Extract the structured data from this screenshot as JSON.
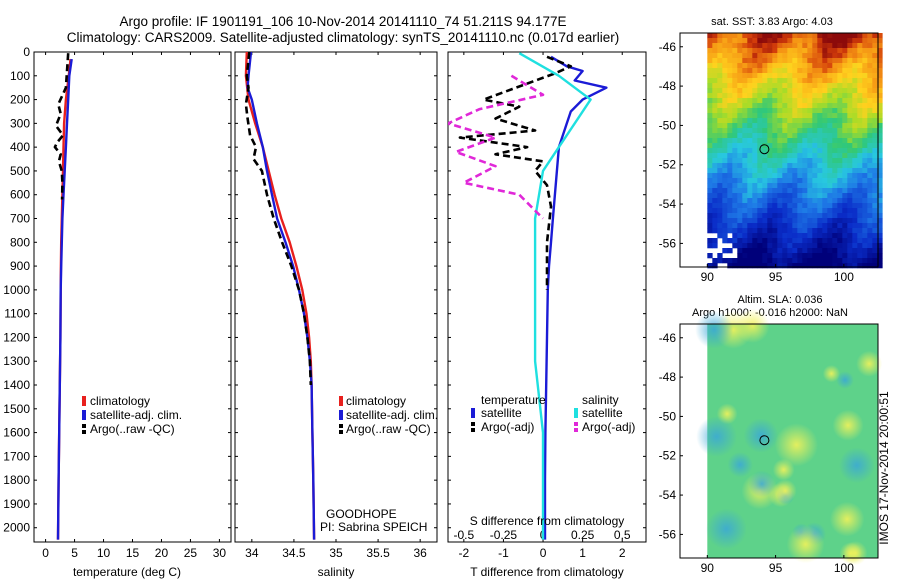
{
  "header": {
    "line1": "Argo profile: IF 1901191_106 10-Nov-2014 20141110_74 51.211S 94.177E",
    "line2": "Climatology: CARS2009. Satellite-adjusted climatology: synTS_20141110.nc (0.017d earlier)"
  },
  "colors": {
    "climatology": "#e8201d",
    "satellite": "#1b1bd6",
    "argo": "#000000",
    "salinity_satellite": "#1fe0e0",
    "salinity_argo": "#e028d8"
  },
  "depth_ticks": [
    "0",
    "100",
    "200",
    "300",
    "400",
    "500",
    "600",
    "700",
    "800",
    "900",
    "1000",
    "1100",
    "1200",
    "1300",
    "1400",
    "1500",
    "1600",
    "1700",
    "1800",
    "1900",
    "2000"
  ],
  "chart_data": [
    {
      "type": "line",
      "id": "temperature",
      "xlabel": "temperature (deg C)",
      "ylabel": "",
      "xlim": [
        -2,
        32
      ],
      "ylim": [
        2060,
        0
      ],
      "xticks": [
        "0",
        "5",
        "10",
        "15",
        "20",
        "25",
        "30"
      ],
      "legend": [
        "climatology",
        "satellite-adj. clim.",
        "Argo(..raw -QC)"
      ],
      "series": [
        {
          "name": "climatology",
          "style": "solid",
          "points": [
            [
              4.3,
              30
            ],
            [
              4.0,
              100
            ],
            [
              3.5,
              200
            ],
            [
              3.2,
              300
            ],
            [
              3.1,
              400
            ],
            [
              3.0,
              500
            ],
            [
              2.9,
              600
            ],
            [
              2.8,
              700
            ],
            [
              2.7,
              800
            ],
            [
              2.65,
              900
            ],
            [
              2.6,
              1000
            ],
            [
              2.55,
              1200
            ],
            [
              2.45,
              1400
            ],
            [
              2.35,
              1600
            ],
            [
              2.25,
              1800
            ],
            [
              2.15,
              2050
            ]
          ]
        },
        {
          "name": "satellite-adj. clim.",
          "style": "solid",
          "points": [
            [
              4.5,
              30
            ],
            [
              4.1,
              100
            ],
            [
              3.9,
              200
            ],
            [
              3.7,
              300
            ],
            [
              3.5,
              400
            ],
            [
              3.3,
              500
            ],
            [
              3.1,
              600
            ],
            [
              2.9,
              700
            ],
            [
              2.8,
              800
            ],
            [
              2.7,
              900
            ],
            [
              2.6,
              1000
            ],
            [
              2.55,
              1200
            ],
            [
              2.45,
              1400
            ],
            [
              2.35,
              1600
            ],
            [
              2.25,
              1800
            ],
            [
              2.15,
              2050
            ]
          ]
        },
        {
          "name": "Argo(..raw -QC)",
          "style": "dash",
          "points": [
            [
              3.9,
              5
            ],
            [
              3.7,
              80
            ],
            [
              3.5,
              150
            ],
            [
              2.2,
              220
            ],
            [
              2.6,
              260
            ],
            [
              1.8,
              310
            ],
            [
              3.0,
              350
            ],
            [
              2.0,
              380
            ],
            [
              1.6,
              400
            ],
            [
              2.6,
              430
            ],
            [
              2.3,
              460
            ],
            [
              2.8,
              500
            ],
            [
              2.9,
              550
            ],
            [
              2.85,
              620
            ]
          ]
        }
      ]
    },
    {
      "type": "line",
      "id": "salinity",
      "xlabel": "salinity",
      "ylabel": "",
      "xlim": [
        33.8,
        36.2
      ],
      "ylim": [
        2060,
        0
      ],
      "xticks": [
        "34",
        "34.5",
        "35",
        "35.5",
        "36"
      ],
      "legend": [
        "climatology",
        "satellite-adj. clim.",
        "Argo(..raw -QC)"
      ],
      "annotation": {
        "line1": "GOODHOPE",
        "line2": "PI: Sabrina SPEICH"
      },
      "series": [
        {
          "name": "climatology",
          "style": "solid",
          "points": [
            [
              33.94,
              0
            ],
            [
              33.93,
              100
            ],
            [
              33.96,
              200
            ],
            [
              34.04,
              300
            ],
            [
              34.13,
              400
            ],
            [
              34.2,
              500
            ],
            [
              34.27,
              600
            ],
            [
              34.35,
              700
            ],
            [
              34.45,
              800
            ],
            [
              34.53,
              900
            ],
            [
              34.6,
              1000
            ],
            [
              34.65,
              1100
            ],
            [
              34.68,
              1200
            ],
            [
              34.7,
              1300
            ],
            [
              34.71,
              1400
            ],
            [
              34.72,
              1600
            ],
            [
              34.73,
              1800
            ],
            [
              34.74,
              2050
            ]
          ]
        },
        {
          "name": "satellite-adj. clim.",
          "style": "solid",
          "points": [
            [
              33.99,
              0
            ],
            [
              33.96,
              100
            ],
            [
              33.95,
              150
            ],
            [
              34.0,
              200
            ],
            [
              34.06,
              300
            ],
            [
              34.13,
              400
            ],
            [
              34.18,
              500
            ],
            [
              34.24,
              600
            ],
            [
              34.3,
              700
            ],
            [
              34.4,
              800
            ],
            [
              34.49,
              900
            ],
            [
              34.56,
              1000
            ],
            [
              34.62,
              1100
            ],
            [
              34.66,
              1200
            ],
            [
              34.69,
              1300
            ],
            [
              34.71,
              1400
            ],
            [
              34.72,
              1600
            ],
            [
              34.73,
              1800
            ],
            [
              34.74,
              2050
            ]
          ]
        },
        {
          "name": "Argo(..raw -QC)",
          "style": "dash",
          "points": [
            [
              33.97,
              0
            ],
            [
              33.94,
              100
            ],
            [
              33.96,
              150
            ],
            [
              33.93,
              220
            ],
            [
              33.95,
              280
            ],
            [
              33.98,
              350
            ],
            [
              34.05,
              400
            ],
            [
              34.02,
              450
            ],
            [
              34.12,
              500
            ],
            [
              34.18,
              600
            ],
            [
              34.26,
              700
            ],
            [
              34.36,
              800
            ],
            [
              34.47,
              900
            ],
            [
              34.56,
              1000
            ],
            [
              34.62,
              1100
            ],
            [
              34.66,
              1200
            ],
            [
              34.69,
              1300
            ],
            [
              34.7,
              1400
            ]
          ]
        }
      ]
    },
    {
      "type": "line",
      "id": "difference",
      "xlabel": "T difference from climatology",
      "top_label": "S difference from climatology",
      "xlim": [
        -2.4,
        2.6
      ],
      "ylim": [
        2060,
        0
      ],
      "xticks": [
        "-2",
        "-1",
        "0",
        "1",
        "2"
      ],
      "s_ticks": [
        "-0.5",
        "-0.25",
        "0",
        "0.25",
        "0.5"
      ],
      "legend_title_left": "temperature",
      "legend_title_right": "salinity",
      "legend": [
        "satellite",
        "Argo(-adj)",
        "satellite",
        "Argo(-adj)"
      ],
      "series": [
        {
          "name": "temperature satellite",
          "style": "solid",
          "points": [
            [
              0.2,
              20
            ],
            [
              0.6,
              60
            ],
            [
              1.0,
              80
            ],
            [
              0.8,
              120
            ],
            [
              1.6,
              150
            ],
            [
              1.0,
              200
            ],
            [
              0.7,
              250
            ],
            [
              0.6,
              300
            ],
            [
              0.4,
              400
            ],
            [
              0.35,
              500
            ],
            [
              0.3,
              600
            ],
            [
              0.25,
              700
            ],
            [
              0.2,
              800
            ],
            [
              0.15,
              900
            ],
            [
              0.12,
              1000
            ],
            [
              0.1,
              1200
            ],
            [
              0.08,
              1400
            ],
            [
              0.06,
              1600
            ],
            [
              0.05,
              1800
            ],
            [
              0.05,
              2050
            ]
          ]
        },
        {
          "name": "temperature Argo(-adj)",
          "style": "dash",
          "points": [
            [
              0.1,
              20
            ],
            [
              0.7,
              60
            ],
            [
              0.3,
              90
            ],
            [
              -1.5,
              200
            ],
            [
              -0.6,
              230
            ],
            [
              -1.2,
              280
            ],
            [
              -0.2,
              330
            ],
            [
              -2.1,
              360
            ],
            [
              -0.4,
              400
            ],
            [
              -1.2,
              430
            ],
            [
              0.0,
              460
            ],
            [
              -0.2,
              500
            ],
            [
              0.1,
              560
            ],
            [
              0.2,
              650
            ],
            [
              0.1,
              800
            ],
            [
              0.1,
              1000
            ]
          ]
        },
        {
          "name": "salinity satellite",
          "style": "solid",
          "points": [
            [
              -0.15,
              5
            ],
            [
              0.1,
              100
            ],
            [
              0.3,
              200
            ],
            [
              0.2,
              300
            ],
            [
              0.1,
              400
            ],
            [
              0.0,
              500
            ],
            [
              -0.05,
              700
            ],
            [
              -0.05,
              1000
            ],
            [
              -0.05,
              1300
            ],
            [
              0.0,
              1600
            ],
            [
              0.0,
              2050
            ]
          ]
        },
        {
          "name": "salinity Argo(-adj)",
          "style": "dash",
          "points": [
            [
              -0.2,
              100
            ],
            [
              0.0,
              180
            ],
            [
              -0.4,
              240
            ],
            [
              -0.6,
              300
            ],
            [
              -0.3,
              360
            ],
            [
              -0.55,
              420
            ],
            [
              -0.3,
              480
            ],
            [
              -0.5,
              550
            ],
            [
              -0.15,
              600
            ],
            [
              0.0,
              700
            ]
          ]
        }
      ]
    }
  ],
  "maps": [
    {
      "id": "sst",
      "title": "sat. SST: 3.83 Argo: 4.03",
      "xticks": [
        "90",
        "95",
        "100"
      ],
      "yticks": [
        "-46",
        "-48",
        "-50",
        "-52",
        "-54",
        "-56"
      ],
      "lon_range": [
        88,
        102.5
      ],
      "lat_range": [
        -57.2,
        -45.3
      ],
      "marker": {
        "lon": 94.18,
        "lat": -51.21
      }
    },
    {
      "id": "sla",
      "title_line1": "Altim. SLA: 0.036",
      "title_line2": "Argo h1000: -0.016 h2000: NaN",
      "xticks": [
        "90",
        "95",
        "100"
      ],
      "yticks": [
        "-46",
        "-48",
        "-50",
        "-52",
        "-54",
        "-56"
      ],
      "lon_range": [
        88,
        102.5
      ],
      "lat_range": [
        -57.2,
        -45.3
      ],
      "marker": {
        "lon": 94.18,
        "lat": -51.21
      }
    }
  ],
  "footer": {
    "side_text": "IMOS 17-Nov-2014 20:00:51"
  }
}
